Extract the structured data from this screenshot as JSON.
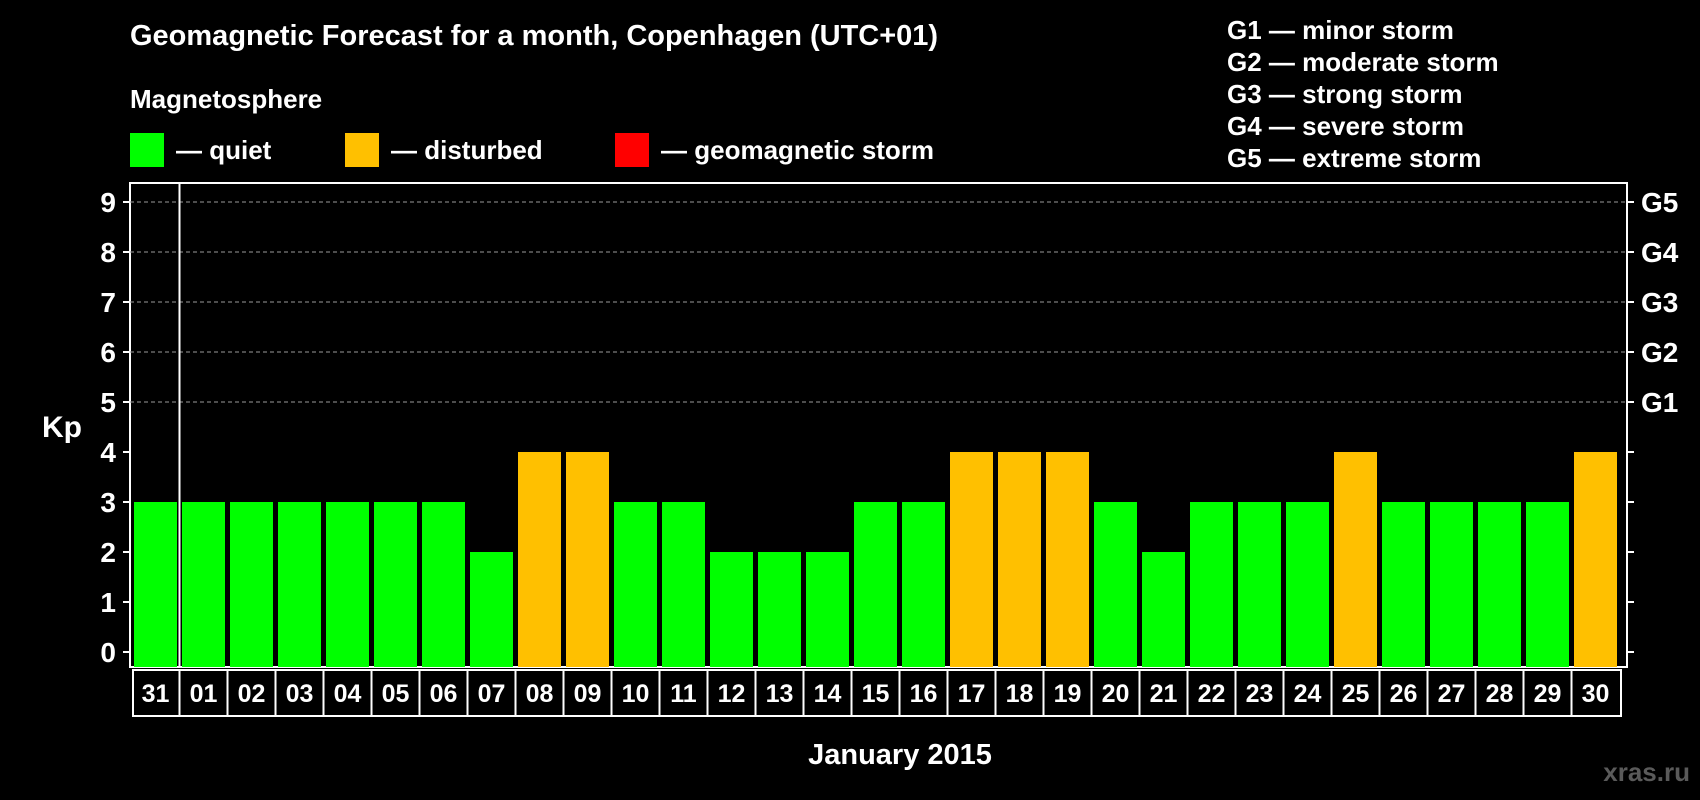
{
  "title": "Geomagnetic Forecast for a month, Copenhagen (UTC+01)",
  "subtitle": "Magnetosphere",
  "legend": [
    {
      "label": "— quiet",
      "color": "#00ff00"
    },
    {
      "label": "— disturbed",
      "color": "#ffc000"
    },
    {
      "label": "— geomagnetic storm",
      "color": "#ff0000"
    }
  ],
  "g_legend": [
    "G1 — minor storm",
    "G2 — moderate storm",
    "G3 — strong storm",
    "G4 — severe storm",
    "G5 — extreme storm"
  ],
  "watermark": "xras.ru",
  "chart_data": {
    "type": "bar",
    "title": "Geomagnetic Forecast for a month, Copenhagen (UTC+01)",
    "ylabel": "Kp",
    "xlabel": "January 2015",
    "ylim": [
      0,
      9
    ],
    "yticks": [
      "0",
      "1",
      "2",
      "3",
      "4",
      "5",
      "6",
      "7",
      "8",
      "9"
    ],
    "right_labels": [
      {
        "label": "G1",
        "kp": 5
      },
      {
        "label": "G2",
        "kp": 6
      },
      {
        "label": "G3",
        "kp": 7
      },
      {
        "label": "G4",
        "kp": 8
      },
      {
        "label": "G5",
        "kp": 9
      }
    ],
    "categories": [
      "31",
      "01",
      "02",
      "03",
      "04",
      "05",
      "06",
      "07",
      "08",
      "09",
      "10",
      "11",
      "12",
      "13",
      "14",
      "15",
      "16",
      "17",
      "18",
      "19",
      "20",
      "21",
      "22",
      "23",
      "24",
      "25",
      "26",
      "27",
      "28",
      "29",
      "30"
    ],
    "values": [
      3,
      3,
      3,
      3,
      3,
      3,
      3,
      2,
      4,
      4,
      3,
      3,
      2,
      2,
      2,
      3,
      3,
      4,
      4,
      4,
      3,
      2,
      3,
      3,
      3,
      4,
      3,
      3,
      3,
      3,
      4
    ],
    "colors": {
      "quiet": "#00ff00",
      "disturbed": "#ffc000",
      "storm": "#ff0000"
    }
  }
}
